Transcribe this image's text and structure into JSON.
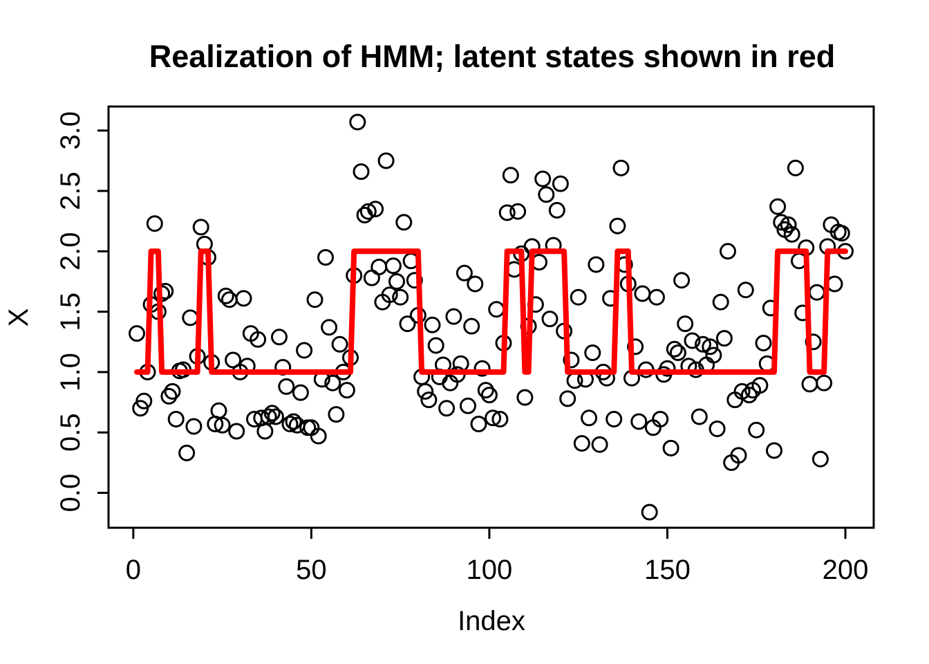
{
  "title": "Realization of HMM; latent states shown in red",
  "axes": {
    "xlabel": "Index",
    "ylabel": "X",
    "x_tick_labels": [
      "0",
      "50",
      "100",
      "150",
      "200"
    ],
    "y_tick_labels": [
      "0.0",
      "0.5",
      "1.0",
      "1.5",
      "2.0",
      "2.5",
      "3.0"
    ]
  },
  "chart_data": {
    "type": "scatter",
    "subtype": "scatter points with red step line of latent states",
    "title": "Realization of HMM; latent states shown in red",
    "xlabel": "Index",
    "ylabel": "X",
    "marker": "open-circle",
    "point_color": "#000000",
    "line_color": "#FF0000",
    "background": "#ffffff",
    "grid": false,
    "legend": "none",
    "x_ticks": [
      0,
      50,
      100,
      150,
      200
    ],
    "y_ticks": [
      0.0,
      0.5,
      1.0,
      1.5,
      2.0,
      2.5,
      3.0
    ],
    "xlim": [
      -6.96,
      207.96
    ],
    "ylim": [
      -0.289,
      3.199
    ],
    "index_start": 1,
    "n_points": 200,
    "y_values": [
      1.32,
      0.7,
      0.76,
      1.0,
      1.56,
      2.23,
      1.5,
      1.65,
      1.67,
      0.8,
      0.84,
      0.61,
      1.01,
      1.02,
      0.33,
      1.45,
      0.55,
      1.13,
      2.2,
      2.06,
      1.95,
      1.08,
      0.57,
      0.68,
      0.56,
      1.63,
      1.6,
      1.1,
      0.51,
      1.0,
      1.61,
      1.05,
      1.32,
      0.61,
      1.27,
      0.62,
      0.51,
      0.63,
      0.66,
      0.63,
      1.29,
      1.04,
      0.88,
      0.57,
      0.59,
      0.56,
      0.83,
      1.18,
      0.54,
      0.54,
      1.6,
      0.47,
      0.94,
      1.95,
      1.37,
      0.91,
      0.65,
      1.23,
      1.0,
      0.85,
      1.12,
      1.8,
      3.07,
      2.66,
      2.3,
      2.33,
      1.78,
      2.35,
      1.87,
      1.58,
      2.75,
      1.64,
      1.88,
      1.75,
      1.62,
      2.24,
      1.4,
      1.92,
      1.76,
      1.47,
      0.96,
      0.84,
      0.77,
      1.39,
      1.22,
      0.96,
      1.06,
      0.7,
      0.91,
      1.46,
      0.98,
      1.07,
      1.82,
      0.72,
      1.38,
      1.73,
      0.57,
      1.03,
      0.85,
      0.81,
      0.62,
      1.52,
      0.61,
      1.24,
      2.32,
      2.63,
      1.85,
      2.33,
      1.98,
      0.79,
      1.38,
      2.04,
      1.56,
      1.91,
      2.6,
      2.47,
      1.44,
      2.05,
      2.34,
      2.56,
      1.34,
      0.78,
      1.1,
      0.93,
      1.62,
      0.41,
      0.94,
      0.62,
      1.16,
      1.89,
      0.4,
      1.0,
      0.95,
      1.61,
      0.61,
      2.21,
      2.69,
      1.89,
      1.73,
      0.95,
      1.21,
      0.59,
      1.65,
      1.02,
      -0.16,
      0.54,
      1.62,
      0.61,
      0.98,
      1.03,
      0.37,
      1.19,
      1.16,
      1.76,
      1.4,
      1.05,
      1.26,
      1.02,
      0.63,
      1.23,
      1.06,
      1.21,
      1.14,
      0.53,
      1.58,
      1.28,
      2.0,
      0.25,
      0.77,
      0.31,
      0.84,
      1.68,
      0.81,
      0.85,
      0.52,
      0.89,
      1.24,
      1.07,
      1.53,
      0.35,
      2.37,
      2.24,
      2.18,
      2.22,
      2.14,
      2.69,
      1.92,
      1.49,
      2.03,
      0.9,
      1.25,
      1.66,
      0.28,
      0.91,
      2.04,
      2.22,
      1.73,
      2.16,
      2.15,
      2.0
    ],
    "latent_state_segments": [
      {
        "start": 1,
        "end": 4,
        "state": 1
      },
      {
        "start": 5,
        "end": 7,
        "state": 2
      },
      {
        "start": 8,
        "end": 18,
        "state": 1
      },
      {
        "start": 19,
        "end": 21,
        "state": 2
      },
      {
        "start": 22,
        "end": 61,
        "state": 1
      },
      {
        "start": 62,
        "end": 80,
        "state": 2
      },
      {
        "start": 81,
        "end": 104,
        "state": 1
      },
      {
        "start": 105,
        "end": 109,
        "state": 2
      },
      {
        "start": 110,
        "end": 111,
        "state": 1
      },
      {
        "start": 112,
        "end": 121,
        "state": 2
      },
      {
        "start": 122,
        "end": 135,
        "state": 1
      },
      {
        "start": 136,
        "end": 139,
        "state": 2
      },
      {
        "start": 140,
        "end": 180,
        "state": 1
      },
      {
        "start": 181,
        "end": 189,
        "state": 2
      },
      {
        "start": 190,
        "end": 194,
        "state": 1
      },
      {
        "start": 195,
        "end": 200,
        "state": 2
      }
    ]
  }
}
